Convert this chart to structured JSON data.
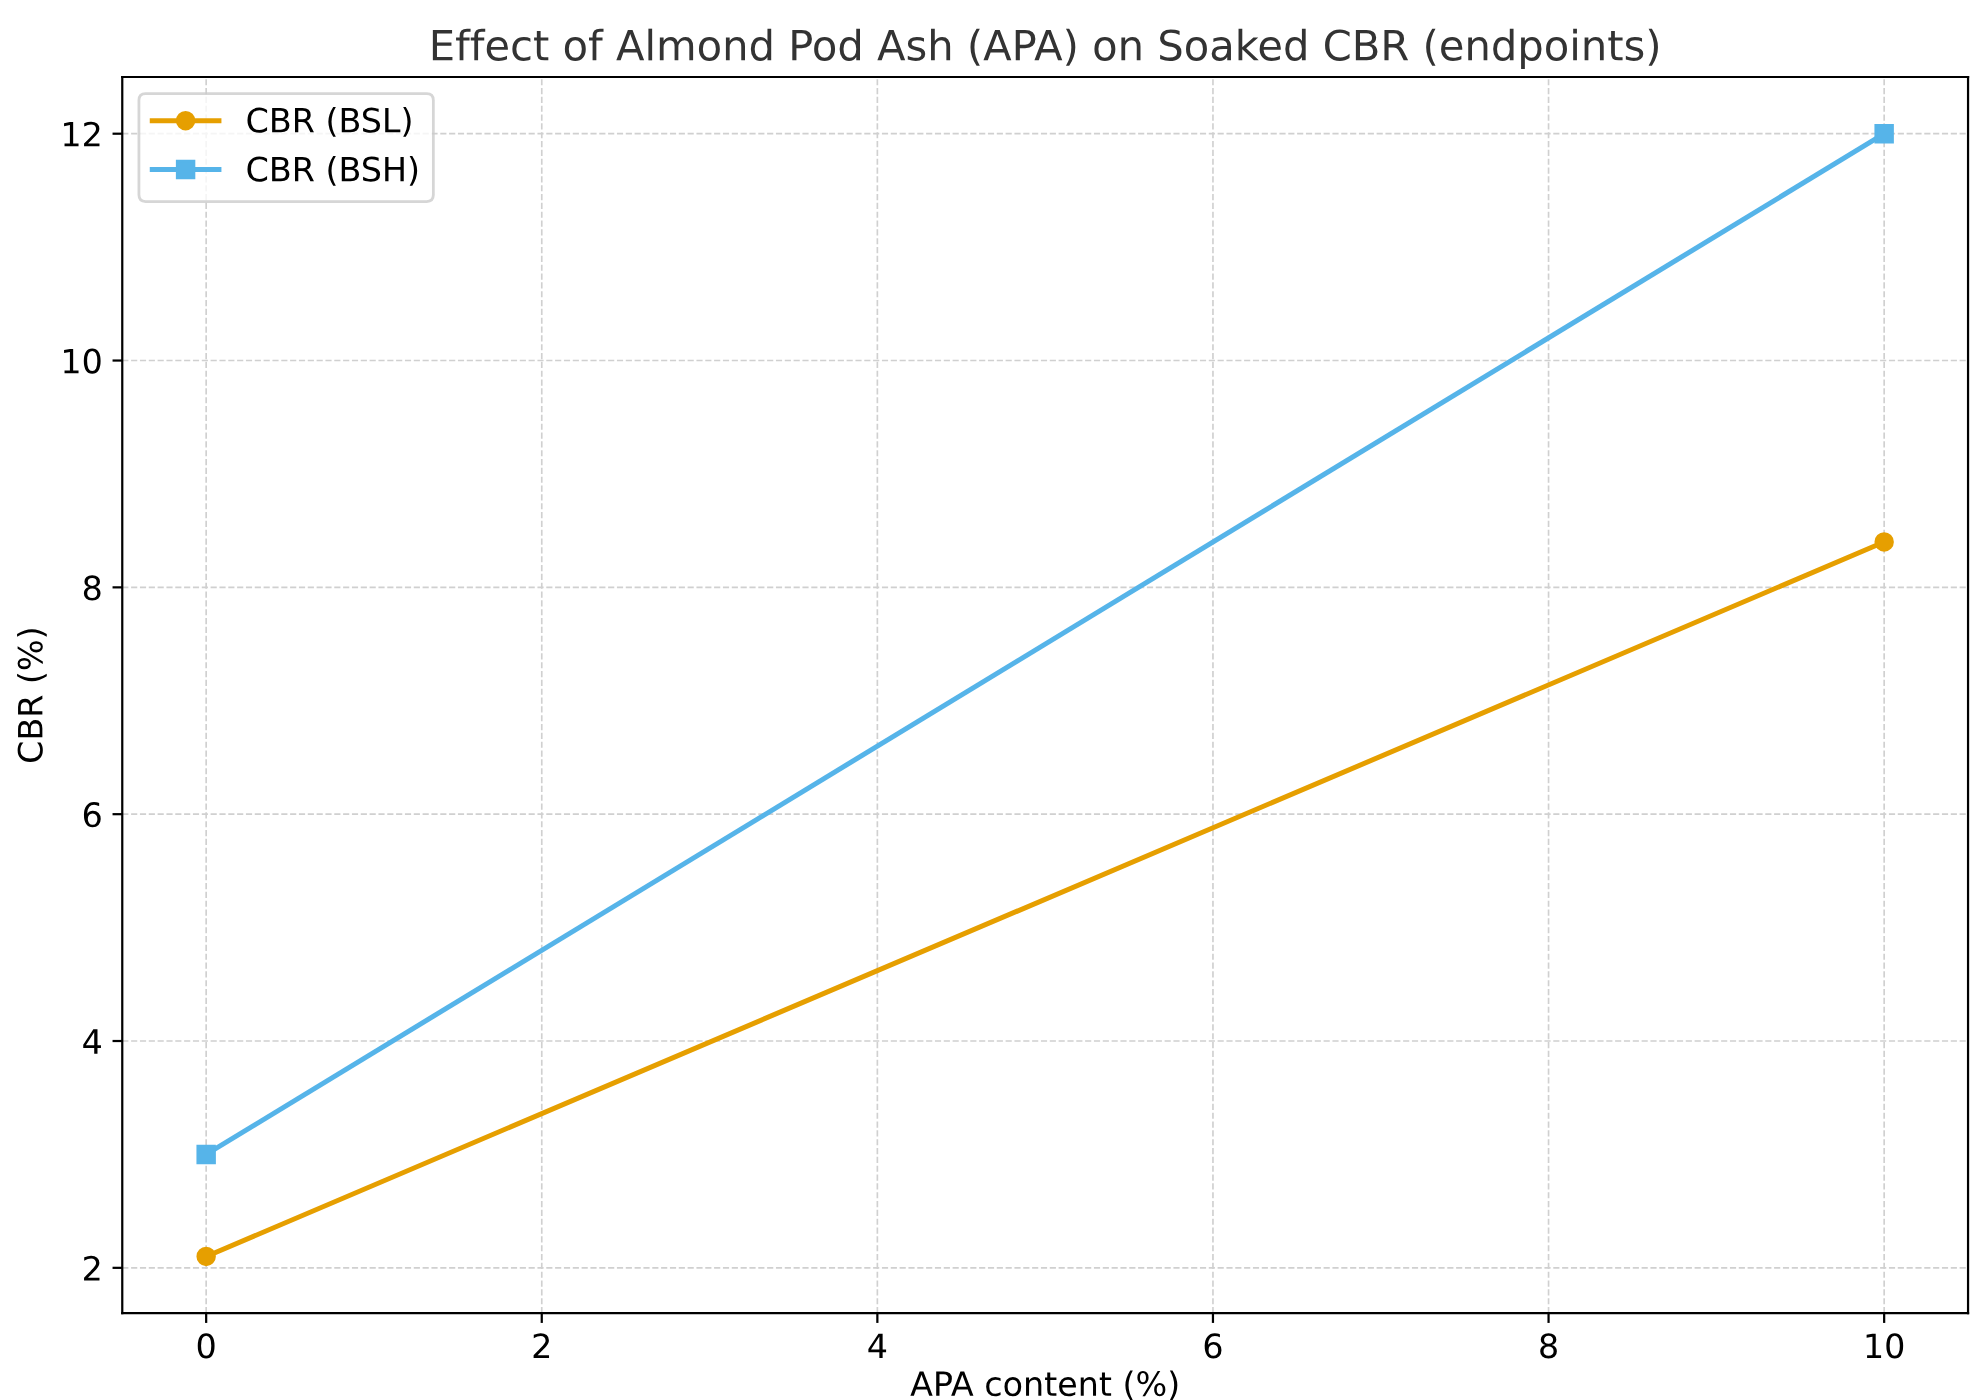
{
  "chart_data": {
    "type": "line",
    "title": "Effect of Almond Pod Ash (APA) on Soaked CBR (endpoints)",
    "xlabel": "APA content (%)",
    "ylabel": "CBR (%)",
    "x": [
      0,
      10
    ],
    "series": [
      {
        "name": "CBR (BSL)",
        "color": "#e69f00",
        "marker": "circle",
        "values": [
          2.1,
          8.4
        ]
      },
      {
        "name": "CBR (BSH)",
        "color": "#56b4e9",
        "marker": "square",
        "values": [
          3.0,
          12.0
        ]
      }
    ],
    "xlim": [
      -0.5,
      10.5
    ],
    "ylim": [
      1.6,
      12.5
    ],
    "xticks": [
      0,
      2,
      4,
      6,
      8,
      10
    ],
    "yticks": [
      2,
      4,
      6,
      8,
      10,
      12
    ],
    "grid": true,
    "legend": "top left",
    "line_style": "solid"
  }
}
